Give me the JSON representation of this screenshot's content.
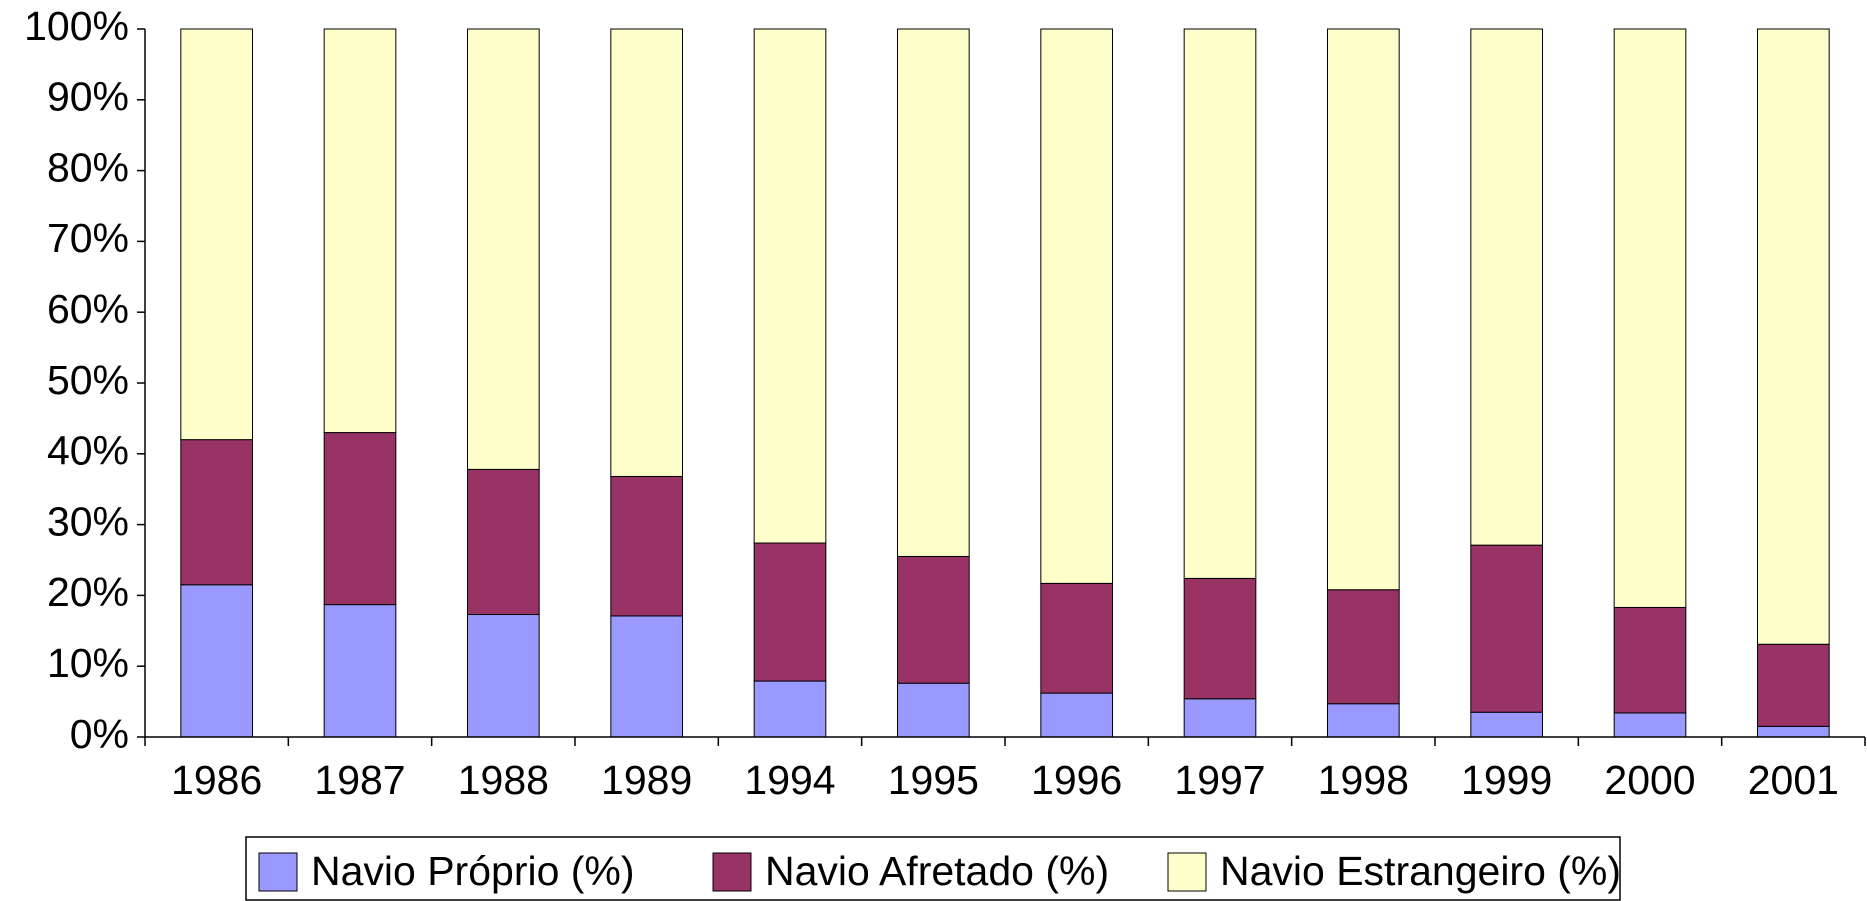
{
  "chart_data": {
    "type": "stacked_bar",
    "categories": [
      "1986",
      "1987",
      "1988",
      "1989",
      "1994",
      "1995",
      "1996",
      "1997",
      "1998",
      "1999",
      "2000",
      "2001"
    ],
    "series": [
      {
        "name": "Navio Próprio (%)",
        "color": "#9999ff",
        "values": [
          21.5,
          18.7,
          17.3,
          17.1,
          7.9,
          7.6,
          6.2,
          5.4,
          4.7,
          3.5,
          3.4,
          1.5
        ]
      },
      {
        "name": "Navio Afretado (%)",
        "color": "#993366",
        "values": [
          20.5,
          24.3,
          20.5,
          19.7,
          19.5,
          17.9,
          15.5,
          17.0,
          16.1,
          23.6,
          14.9,
          11.6
        ]
      },
      {
        "name": "Navio Estrangeiro (%)",
        "color": "#ffffcc",
        "values": [
          58.0,
          57.0,
          62.2,
          63.2,
          72.6,
          74.5,
          78.3,
          77.6,
          79.2,
          72.9,
          81.7,
          86.9
        ]
      }
    ],
    "ylim": [
      0,
      100
    ],
    "yticks": [
      {
        "value": 0,
        "label": "0%"
      },
      {
        "value": 10,
        "label": "10%"
      },
      {
        "value": 20,
        "label": "20%"
      },
      {
        "value": 30,
        "label": "30%"
      },
      {
        "value": 40,
        "label": "40%"
      },
      {
        "value": 50,
        "label": "50%"
      },
      {
        "value": 60,
        "label": "60%"
      },
      {
        "value": 70,
        "label": "70%"
      },
      {
        "value": 80,
        "label": "80%"
      },
      {
        "value": 90,
        "label": "90%"
      },
      {
        "value": 100,
        "label": "100%"
      }
    ],
    "grid": false,
    "legend": "bottom"
  }
}
